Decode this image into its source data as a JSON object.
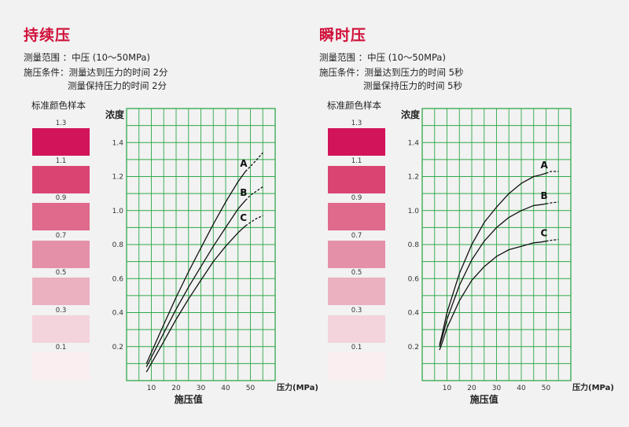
{
  "panels": [
    {
      "title": "持续压",
      "range_line": "测量范围 ：中压 (10～50MPa)",
      "cond_line1": "施压条件：测量达到压力的时间 2分",
      "cond_line2": "测量保持压力的时间 2分",
      "swatch_title": "标准颜色样本"
    },
    {
      "title": "瞬时压",
      "range_line": "测量范围 ：中压 (10～50MPa)",
      "cond_line1": "施压条件：测量达到压力的时间 5秒",
      "cond_line2": "测量保持压力的时间 5秒",
      "swatch_title": "标准颜色样本"
    }
  ],
  "swatches": [
    {
      "label": "1.3",
      "color": "#d2145a"
    },
    {
      "label": "1.1",
      "color": "#d94473"
    },
    {
      "label": "0.9",
      "color": "#df6a8c"
    },
    {
      "label": "0.7",
      "color": "#e590a9"
    },
    {
      "label": "0.5",
      "color": "#ebb1c0"
    },
    {
      "label": "0.3",
      "color": "#f3d3dc"
    },
    {
      "label": "0.1",
      "color": "#faeef1"
    }
  ],
  "colors": {
    "grid": "#2fa84a",
    "title": "#d0103a",
    "curve": "#111111"
  },
  "chart_data": [
    {
      "type": "line",
      "ylabel": "浓度",
      "xlabel": "施压值",
      "x_unit_label": "压力(MPa)",
      "xlim": [
        0,
        60
      ],
      "ylim": [
        0,
        1.6
      ],
      "xticks": [
        10,
        20,
        30,
        40,
        50
      ],
      "yticks": [
        0.2,
        0.4,
        0.6,
        0.8,
        1.0,
        1.2,
        1.4
      ],
      "grid": true,
      "series": [
        {
          "name": "A",
          "x": [
            8,
            15,
            20,
            25,
            30,
            35,
            40,
            45,
            48,
            50,
            52,
            55
          ],
          "y": [
            0.1,
            0.33,
            0.49,
            0.64,
            0.78,
            0.92,
            1.05,
            1.17,
            1.23,
            1.26,
            1.29,
            1.34
          ],
          "solid_until": 48
        },
        {
          "name": "B",
          "x": [
            8,
            15,
            20,
            25,
            30,
            35,
            40,
            45,
            48,
            50,
            52,
            55
          ],
          "y": [
            0.08,
            0.28,
            0.42,
            0.55,
            0.67,
            0.79,
            0.9,
            1.01,
            1.06,
            1.09,
            1.11,
            1.14
          ],
          "solid_until": 48
        },
        {
          "name": "C",
          "x": [
            8,
            15,
            20,
            25,
            30,
            35,
            40,
            45,
            48,
            50,
            52,
            55
          ],
          "y": [
            0.05,
            0.23,
            0.36,
            0.48,
            0.59,
            0.7,
            0.79,
            0.87,
            0.91,
            0.93,
            0.95,
            0.97
          ],
          "solid_until": 48
        }
      ]
    },
    {
      "type": "line",
      "ylabel": "浓度",
      "xlabel": "施压值",
      "x_unit_label": "压力(MPa)",
      "xlim": [
        0,
        60
      ],
      "ylim": [
        0,
        1.6
      ],
      "xticks": [
        10,
        20,
        30,
        40,
        50
      ],
      "yticks": [
        0.2,
        0.4,
        0.6,
        0.8,
        1.0,
        1.2,
        1.4
      ],
      "grid": true,
      "series": [
        {
          "name": "A",
          "x": [
            7,
            8,
            10,
            15,
            20,
            25,
            30,
            35,
            40,
            45,
            48,
            50,
            52,
            55
          ],
          "y": [
            0.21,
            0.27,
            0.4,
            0.63,
            0.8,
            0.93,
            1.02,
            1.1,
            1.16,
            1.2,
            1.21,
            1.22,
            1.23,
            1.23
          ],
          "solid_until": 50
        },
        {
          "name": "B",
          "x": [
            7,
            8,
            10,
            15,
            20,
            25,
            30,
            35,
            40,
            45,
            48,
            50,
            52,
            55
          ],
          "y": [
            0.2,
            0.25,
            0.36,
            0.56,
            0.71,
            0.82,
            0.9,
            0.96,
            1.0,
            1.03,
            1.035,
            1.04,
            1.045,
            1.05
          ],
          "solid_until": 50
        },
        {
          "name": "C",
          "x": [
            7,
            8,
            10,
            15,
            20,
            25,
            30,
            35,
            40,
            45,
            48,
            50,
            52,
            55
          ],
          "y": [
            0.18,
            0.22,
            0.31,
            0.47,
            0.59,
            0.67,
            0.73,
            0.77,
            0.79,
            0.81,
            0.815,
            0.82,
            0.825,
            0.83
          ],
          "solid_until": 50
        }
      ]
    }
  ]
}
